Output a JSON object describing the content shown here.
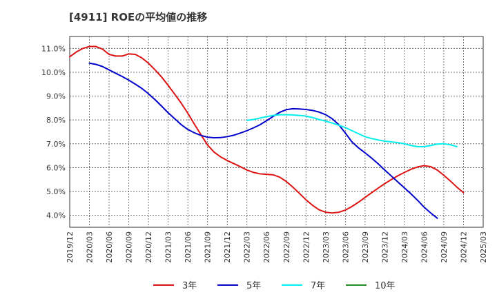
{
  "chart_data": {
    "type": "line",
    "title": "[4911]  ROEの平均値の推移",
    "xlabel": "",
    "ylabel": "",
    "x_ticks": [
      "2019/12",
      "2020/03",
      "2020/06",
      "2020/09",
      "2020/12",
      "2021/03",
      "2021/06",
      "2021/09",
      "2021/12",
      "2022/03",
      "2022/06",
      "2022/09",
      "2022/12",
      "2023/03",
      "2023/06",
      "2023/09",
      "2023/12",
      "2024/03",
      "2024/06",
      "2024/09",
      "2024/12",
      "2025/03"
    ],
    "y_ticks": [
      "4.0%",
      "5.0%",
      "6.0%",
      "7.0%",
      "8.0%",
      "9.0%",
      "10.0%",
      "11.0%"
    ],
    "ylim": [
      3.5,
      11.5
    ],
    "grid": true,
    "legend_position": "bottom",
    "series": [
      {
        "name": "3年",
        "color": "#dd1111",
        "points": [
          [
            "2019/12",
            10.65
          ],
          [
            "2020/01",
            10.85
          ],
          [
            "2020/02",
            11.0
          ],
          [
            "2020/03",
            11.08
          ],
          [
            "2020/04",
            11.08
          ],
          [
            "2020/05",
            10.97
          ],
          [
            "2020/06",
            10.75
          ],
          [
            "2020/07",
            10.68
          ],
          [
            "2020/08",
            10.68
          ],
          [
            "2020/09",
            10.77
          ],
          [
            "2020/10",
            10.75
          ],
          [
            "2020/11",
            10.6
          ],
          [
            "2020/12",
            10.38
          ],
          [
            "2021/01",
            10.1
          ],
          [
            "2021/02",
            9.8
          ],
          [
            "2021/03",
            9.45
          ],
          [
            "2021/04",
            9.08
          ],
          [
            "2021/05",
            8.7
          ],
          [
            "2021/06",
            8.28
          ],
          [
            "2021/07",
            7.82
          ],
          [
            "2021/08",
            7.38
          ],
          [
            "2021/09",
            6.95
          ],
          [
            "2021/10",
            6.65
          ],
          [
            "2021/11",
            6.45
          ],
          [
            "2021/12",
            6.3
          ],
          [
            "2022/01",
            6.17
          ],
          [
            "2022/02",
            6.04
          ],
          [
            "2022/03",
            5.9
          ],
          [
            "2022/04",
            5.8
          ],
          [
            "2022/05",
            5.74
          ],
          [
            "2022/06",
            5.72
          ],
          [
            "2022/07",
            5.7
          ],
          [
            "2022/08",
            5.6
          ],
          [
            "2022/09",
            5.42
          ],
          [
            "2022/10",
            5.18
          ],
          [
            "2022/11",
            4.92
          ],
          [
            "2022/12",
            4.65
          ],
          [
            "2023/01",
            4.42
          ],
          [
            "2023/02",
            4.23
          ],
          [
            "2023/03",
            4.13
          ],
          [
            "2023/04",
            4.1
          ],
          [
            "2023/05",
            4.13
          ],
          [
            "2023/06",
            4.22
          ],
          [
            "2023/07",
            4.37
          ],
          [
            "2023/08",
            4.55
          ],
          [
            "2023/09",
            4.75
          ],
          [
            "2023/10",
            4.95
          ],
          [
            "2023/11",
            5.14
          ],
          [
            "2023/12",
            5.33
          ],
          [
            "2024/01",
            5.5
          ],
          [
            "2024/02",
            5.66
          ],
          [
            "2024/03",
            5.8
          ],
          [
            "2024/04",
            5.93
          ],
          [
            "2024/05",
            6.03
          ],
          [
            "2024/06",
            6.08
          ],
          [
            "2024/07",
            6.04
          ],
          [
            "2024/08",
            5.9
          ],
          [
            "2024/09",
            5.68
          ],
          [
            "2024/10",
            5.44
          ],
          [
            "2024/11",
            5.18
          ],
          [
            "2024/12",
            4.95
          ]
        ]
      },
      {
        "name": "5年",
        "color": "#0000cc",
        "points": [
          [
            "2020/03",
            10.38
          ],
          [
            "2020/04",
            10.33
          ],
          [
            "2020/05",
            10.24
          ],
          [
            "2020/06",
            10.1
          ],
          [
            "2020/07",
            9.96
          ],
          [
            "2020/08",
            9.82
          ],
          [
            "2020/09",
            9.67
          ],
          [
            "2020/10",
            9.5
          ],
          [
            "2020/11",
            9.32
          ],
          [
            "2020/12",
            9.1
          ],
          [
            "2021/01",
            8.85
          ],
          [
            "2021/02",
            8.58
          ],
          [
            "2021/03",
            8.3
          ],
          [
            "2021/04",
            8.05
          ],
          [
            "2021/05",
            7.8
          ],
          [
            "2021/06",
            7.6
          ],
          [
            "2021/07",
            7.46
          ],
          [
            "2021/08",
            7.35
          ],
          [
            "2021/09",
            7.28
          ],
          [
            "2021/10",
            7.25
          ],
          [
            "2021/11",
            7.26
          ],
          [
            "2021/12",
            7.3
          ],
          [
            "2022/01",
            7.36
          ],
          [
            "2022/02",
            7.45
          ],
          [
            "2022/03",
            7.55
          ],
          [
            "2022/04",
            7.67
          ],
          [
            "2022/05",
            7.8
          ],
          [
            "2022/06",
            7.97
          ],
          [
            "2022/07",
            8.15
          ],
          [
            "2022/08",
            8.32
          ],
          [
            "2022/09",
            8.43
          ],
          [
            "2022/10",
            8.47
          ],
          [
            "2022/11",
            8.46
          ],
          [
            "2022/12",
            8.44
          ],
          [
            "2023/01",
            8.4
          ],
          [
            "2023/02",
            8.33
          ],
          [
            "2023/03",
            8.22
          ],
          [
            "2023/04",
            8.05
          ],
          [
            "2023/05",
            7.8
          ],
          [
            "2023/06",
            7.45
          ],
          [
            "2023/07",
            7.08
          ],
          [
            "2023/08",
            6.83
          ],
          [
            "2023/09",
            6.62
          ],
          [
            "2023/10",
            6.4
          ],
          [
            "2023/11",
            6.16
          ],
          [
            "2023/12",
            5.9
          ],
          [
            "2024/01",
            5.65
          ],
          [
            "2024/02",
            5.4
          ],
          [
            "2024/03",
            5.15
          ],
          [
            "2024/04",
            4.9
          ],
          [
            "2024/05",
            4.63
          ],
          [
            "2024/06",
            4.34
          ],
          [
            "2024/07",
            4.1
          ],
          [
            "2024/08",
            3.88
          ]
        ]
      },
      {
        "name": "7年",
        "color": "#00eeee",
        "points": [
          [
            "2022/03",
            7.98
          ],
          [
            "2022/04",
            8.02
          ],
          [
            "2022/05",
            8.08
          ],
          [
            "2022/06",
            8.14
          ],
          [
            "2022/07",
            8.19
          ],
          [
            "2022/08",
            8.22
          ],
          [
            "2022/09",
            8.22
          ],
          [
            "2022/10",
            8.21
          ],
          [
            "2022/11",
            8.19
          ],
          [
            "2022/12",
            8.16
          ],
          [
            "2023/01",
            8.1
          ],
          [
            "2023/02",
            8.02
          ],
          [
            "2023/03",
            7.95
          ],
          [
            "2023/04",
            7.87
          ],
          [
            "2023/05",
            7.78
          ],
          [
            "2023/06",
            7.68
          ],
          [
            "2023/07",
            7.55
          ],
          [
            "2023/08",
            7.42
          ],
          [
            "2023/09",
            7.3
          ],
          [
            "2023/10",
            7.22
          ],
          [
            "2023/11",
            7.16
          ],
          [
            "2023/12",
            7.11
          ],
          [
            "2024/01",
            7.08
          ],
          [
            "2024/02",
            7.05
          ],
          [
            "2024/03",
            7.0
          ],
          [
            "2024/04",
            6.93
          ],
          [
            "2024/05",
            6.88
          ],
          [
            "2024/06",
            6.88
          ],
          [
            "2024/07",
            6.93
          ],
          [
            "2024/08",
            6.99
          ],
          [
            "2024/09",
            7.0
          ],
          [
            "2024/10",
            6.96
          ],
          [
            "2024/11",
            6.88
          ]
        ]
      },
      {
        "name": "10年",
        "color": "#228b22",
        "points": []
      }
    ]
  }
}
